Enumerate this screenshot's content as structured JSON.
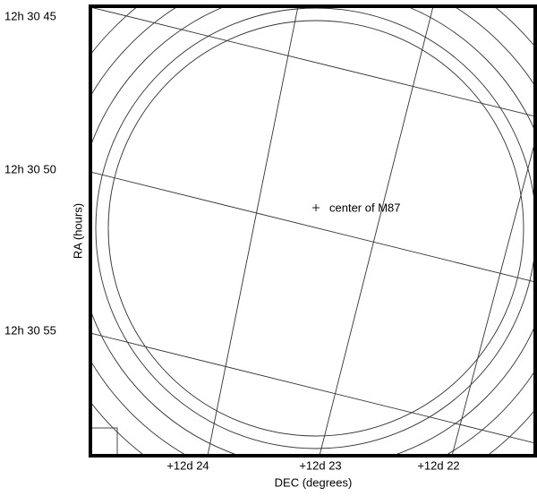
{
  "plot": {
    "x_axis_label": "DEC (degrees)",
    "y_axis_label": "RA (hours)",
    "x_tick_labels": [
      "+12d 24",
      "+12d 23",
      "+12d 22"
    ],
    "y_tick_labels": [
      "12h 30 45",
      "12h 30 50",
      "12h 30 55"
    ],
    "annotation": "center of M87"
  }
}
